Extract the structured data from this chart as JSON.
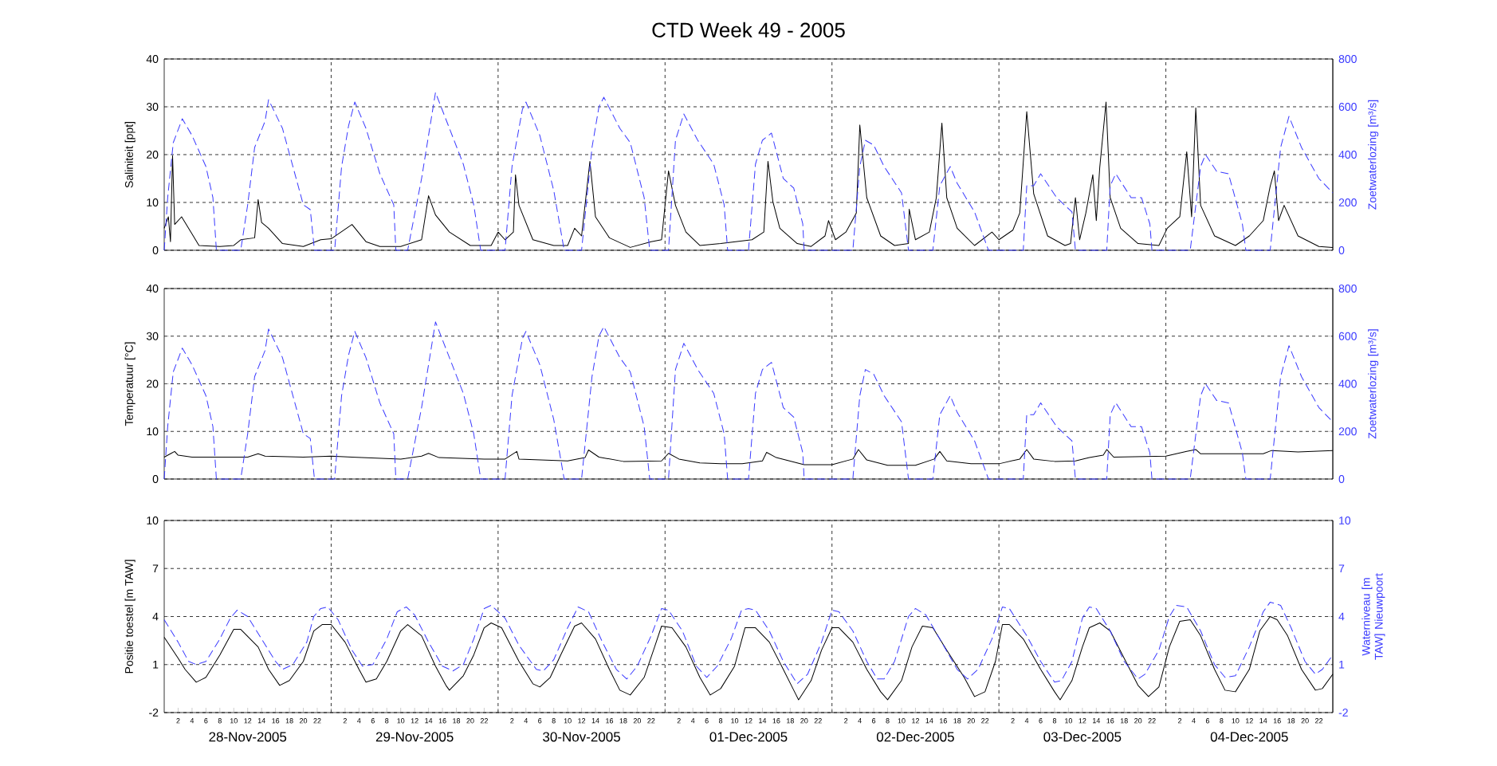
{
  "chart_data": [
    {
      "type": "line",
      "title": "CTD Week 49 - 2005",
      "ylabel": "Saliniteit [ppt]",
      "y2label": "Zoetwaterlozing [m³/s]",
      "xlim": [
        "2005-11-28T00:00",
        "2005-12-05T00:00"
      ],
      "xticks": [
        {
          "value": "2005-11-29T00:00",
          "label": null
        },
        {
          "value": "2005-11-30T00:00",
          "label": null
        },
        {
          "value": "2005-12-01T00:00",
          "label": null
        },
        {
          "value": "2005-12-02T00:00",
          "label": null
        },
        {
          "value": "2005-12-03T00:00",
          "label": null
        },
        {
          "value": "2005-12-04T00:00",
          "label": null
        }
      ],
      "ylim": [
        0,
        40
      ],
      "yticks": [
        0,
        10,
        20,
        30,
        40
      ],
      "y2lim": [
        0,
        800
      ],
      "y2ticks": [
        0,
        200,
        400,
        600,
        800
      ],
      "grid": true,
      "tick_labels": "y",
      "series": [
        {
          "color": "#000000",
          "line_style": "solid",
          "x": [
            "2005-11-28T00:00",
            "2005-11-28T00:36",
            "2005-11-28T00:54",
            "2005-11-28T01:12",
            "2005-11-28T01:30",
            "2005-11-28T02:30",
            "2005-11-28T04:00",
            "2005-11-28T05:00",
            "2005-11-28T08:00",
            "2005-11-28T10:00",
            "2005-11-28T11:00",
            "2005-11-28T13:00",
            "2005-11-28T13:30",
            "2005-11-28T14:00",
            "2005-11-28T15:00",
            "2005-11-28T17:00",
            "2005-11-28T20:00",
            "2005-11-28T22:30",
            "2005-11-29T00:00",
            "2005-11-29T03:00",
            "2005-11-29T05:00",
            "2005-11-29T07:00",
            "2005-11-29T10:00",
            "2005-11-29T13:00",
            "2005-11-29T14:00",
            "2005-11-29T15:00",
            "2005-11-29T17:00",
            "2005-11-29T20:00",
            "2005-11-29T23:00",
            "2005-11-30T00:00",
            "2005-11-30T01:00",
            "2005-11-30T02:12",
            "2005-11-30T02:30",
            "2005-11-30T03:00",
            "2005-11-30T05:00",
            "2005-11-30T08:00",
            "2005-11-30T10:00",
            "2005-11-30T11:00",
            "2005-11-30T12:00",
            "2005-11-30T13:12",
            "2005-11-30T14:00",
            "2005-11-30T16:00",
            "2005-11-30T19:00",
            "2005-11-30T22:00",
            "2005-11-30T23:30",
            "2005-12-01T00:30",
            "2005-12-01T01:30",
            "2005-12-01T03:00",
            "2005-12-01T05:00",
            "2005-12-01T08:00",
            "2005-12-01T12:30",
            "2005-12-01T14:12",
            "2005-12-01T14:48",
            "2005-12-01T15:30",
            "2005-12-01T16:30",
            "2005-12-01T19:00",
            "2005-12-01T21:00",
            "2005-12-01T23:00",
            "2005-12-01T23:30",
            "2005-12-02T00:30",
            "2005-12-02T02:00",
            "2005-12-02T03:30",
            "2005-12-02T04:00",
            "2005-12-02T05:00",
            "2005-12-02T07:00",
            "2005-12-02T09:00",
            "2005-12-02T11:00",
            "2005-12-02T11:06",
            "2005-12-02T12:00",
            "2005-12-02T14:00",
            "2005-12-02T15:00",
            "2005-12-02T15:48",
            "2005-12-02T16:30",
            "2005-12-02T18:00",
            "2005-12-02T20:30",
            "2005-12-02T23:00",
            "2005-12-03T00:00",
            "2005-12-03T02:00",
            "2005-12-03T03:00",
            "2005-12-03T04:00",
            "2005-12-03T05:00",
            "2005-12-03T07:00",
            "2005-12-03T09:30",
            "2005-12-03T10:18",
            "2005-12-03T11:00",
            "2005-12-03T11:36",
            "2005-12-03T12:30",
            "2005-12-03T13:30",
            "2005-12-03T14:00",
            "2005-12-03T14:30",
            "2005-12-03T15:24",
            "2005-12-03T16:00",
            "2005-12-03T17:30",
            "2005-12-03T20:00",
            "2005-12-03T23:00",
            "2005-12-04T00:12",
            "2005-12-04T02:00",
            "2005-12-04T03:00",
            "2005-12-04T03:42",
            "2005-12-04T04:18",
            "2005-12-04T05:00",
            "2005-12-04T07:00",
            "2005-12-04T10:00",
            "2005-12-04T12:00",
            "2005-12-04T14:00",
            "2005-12-04T15:00",
            "2005-12-04T15:36",
            "2005-12-04T16:12",
            "2005-12-04T17:00",
            "2005-12-04T19:00",
            "2005-12-04T22:00",
            "2005-12-05T00:00"
          ],
          "values": [
            4.6,
            7,
            1.8,
            19.8,
            5.4,
            7,
            3.4,
            1,
            0.8,
            1,
            2.2,
            2.6,
            10.6,
            5.8,
            4.6,
            1.4,
            0.8,
            2.2,
            2.4,
            5.4,
            1.8,
            0.8,
            0.8,
            2.2,
            11.4,
            7.4,
            3.8,
            1,
            1,
            3.8,
            2.2,
            3.8,
            15.8,
            9.4,
            2.2,
            1,
            1,
            4.6,
            3,
            18.6,
            7,
            2.6,
            0.6,
            1.8,
            2.2,
            16.6,
            9.4,
            3.8,
            1,
            1.4,
            2.2,
            3.8,
            18.6,
            10.2,
            4.6,
            1.4,
            0.8,
            3,
            6.2,
            2.2,
            3.8,
            7.8,
            26.2,
            11,
            3,
            1,
            1.4,
            8.6,
            2.2,
            3.8,
            11,
            26.6,
            11,
            4.6,
            1,
            3.8,
            2.2,
            4.2,
            7.8,
            29,
            11.8,
            3,
            1,
            1.4,
            11,
            2.2,
            7.8,
            15.8,
            6.2,
            17.4,
            31,
            11,
            4.6,
            1.4,
            1,
            4.6,
            7,
            20.6,
            7,
            29.8,
            9.4,
            3,
            1,
            3,
            6.2,
            13.4,
            16.6,
            6.2,
            9.4,
            3,
            0.8,
            0.6
          ]
        },
        {
          "color": "#3a3aff",
          "line_style": "dashed",
          "axis": "y2",
          "x": [
            "2005-11-28T00:00",
            "2005-11-28T00:30",
            "2005-11-28T01:18",
            "2005-11-28T02:36",
            "2005-11-28T04:00",
            "2005-11-28T06:00",
            "2005-11-28T07:00",
            "2005-11-28T07:30",
            "2005-11-28T11:00",
            "2005-11-28T12:00",
            "2005-11-28T13:00",
            "2005-11-28T14:30",
            "2005-11-28T15:00",
            "2005-11-28T17:00",
            "2005-11-28T18:30",
            "2005-11-28T20:00",
            "2005-11-28T21:00",
            "2005-11-28T21:36",
            "2005-11-29T00:30",
            "2005-11-29T01:30",
            "2005-11-29T02:30",
            "2005-11-29T03:24",
            "2005-11-29T05:00",
            "2005-11-29T07:00",
            "2005-11-29T09:00",
            "2005-11-29T09:18",
            "2005-11-29T11:00",
            "2005-11-29T13:00",
            "2005-11-29T14:00",
            "2005-11-29T15:00",
            "2005-11-29T17:00",
            "2005-11-29T19:00",
            "2005-11-29T20:30",
            "2005-11-29T21:30",
            "2005-11-30T01:00",
            "2005-11-30T02:00",
            "2005-11-30T03:30",
            "2005-11-30T04:00",
            "2005-11-30T06:00",
            "2005-11-30T08:00",
            "2005-11-30T09:30",
            "2005-11-30T12:00",
            "2005-11-30T13:30",
            "2005-11-30T14:30",
            "2005-11-30T15:12",
            "2005-11-30T17:30",
            "2005-11-30T19:00",
            "2005-11-30T21:00",
            "2005-11-30T21:48",
            "2005-12-01T00:30",
            "2005-12-01T01:30",
            "2005-12-01T02:42",
            "2005-12-01T04:42",
            "2005-12-01T07:00",
            "2005-12-01T08:30",
            "2005-12-01T09:00",
            "2005-12-01T12:00",
            "2005-12-01T13:00",
            "2005-12-01T14:00",
            "2005-12-01T15:18",
            "2005-12-01T17:00",
            "2005-12-01T18:30",
            "2005-12-01T19:48",
            "2005-12-01T20:00",
            "2005-12-02T03:00",
            "2005-12-02T04:00",
            "2005-12-02T04:48",
            "2005-12-02T06:00",
            "2005-12-02T07:30",
            "2005-12-02T10:00",
            "2005-12-02T11:00",
            "2005-12-02T14:30",
            "2005-12-02T15:30",
            "2005-12-02T17:00",
            "2005-12-02T18:00",
            "2005-12-02T20:30",
            "2005-12-02T22:30",
            "2005-12-03T03:30",
            "2005-12-03T04:00",
            "2005-12-03T05:00",
            "2005-12-03T06:00",
            "2005-12-03T08:18",
            "2005-12-03T10:30",
            "2005-12-03T11:00",
            "2005-12-03T15:30",
            "2005-12-03T16:00",
            "2005-12-03T16:48",
            "2005-12-03T19:00",
            "2005-12-03T20:30",
            "2005-12-03T21:42",
            "2005-12-03T22:00",
            "2005-12-04T03:30",
            "2005-12-04T05:00",
            "2005-12-04T05:42",
            "2005-12-04T07:18",
            "2005-12-04T09:00",
            "2005-12-04T11:00",
            "2005-12-04T11:30",
            "2005-12-04T15:00",
            "2005-12-04T16:30",
            "2005-12-04T17:42",
            "2005-12-04T19:30",
            "2005-12-04T22:00",
            "2005-12-05T00:00"
          ],
          "values": [
            0,
            220,
            450,
            550,
            480,
            350,
            220,
            0,
            0,
            190,
            430,
            540,
            630,
            510,
            350,
            190,
            170,
            0,
            0,
            350,
            520,
            620,
            510,
            320,
            190,
            0,
            0,
            300,
            480,
            660,
            510,
            360,
            190,
            0,
            0,
            350,
            590,
            620,
            480,
            250,
            0,
            0,
            430,
            600,
            640,
            510,
            450,
            220,
            0,
            0,
            460,
            570,
            460,
            360,
            190,
            0,
            0,
            360,
            460,
            490,
            300,
            260,
            110,
            0,
            0,
            350,
            460,
            440,
            350,
            240,
            0,
            0,
            270,
            350,
            280,
            160,
            0,
            0,
            270,
            270,
            320,
            220,
            160,
            0,
            0,
            270,
            320,
            220,
            220,
            110,
            0,
            0,
            350,
            400,
            330,
            320,
            110,
            0,
            0,
            430,
            560,
            430,
            300,
            240
          ]
        }
      ]
    },
    {
      "type": "line",
      "ylabel": "Temperatuur [°C]",
      "y2label": "Zoetwaterlozing [m³/s]",
      "xlim": [
        "2005-11-28T00:00",
        "2005-12-05T00:00"
      ],
      "xticks": [
        {
          "value": "2005-11-29T00:00",
          "label": null
        },
        {
          "value": "2005-11-30T00:00",
          "label": null
        },
        {
          "value": "2005-12-01T00:00",
          "label": null
        },
        {
          "value": "2005-12-02T00:00",
          "label": null
        },
        {
          "value": "2005-12-03T00:00",
          "label": null
        },
        {
          "value": "2005-12-04T00:00",
          "label": null
        }
      ],
      "ylim": [
        0,
        40
      ],
      "yticks": [
        0,
        10,
        20,
        30,
        40
      ],
      "y2lim": [
        0,
        800
      ],
      "y2ticks": [
        0,
        200,
        400,
        600,
        800
      ],
      "grid": true,
      "tick_labels": "y",
      "series": [
        {
          "color": "#000000",
          "line_style": "solid",
          "x": [
            "2005-11-28T00:00",
            "2005-11-28T01:00",
            "2005-11-28T01:30",
            "2005-11-28T02:00",
            "2005-11-28T04:00",
            "2005-11-28T12:00",
            "2005-11-28T13:30",
            "2005-11-28T14:30",
            "2005-11-28T20:00",
            "2005-11-29T00:00",
            "2005-11-29T03:00",
            "2005-11-29T10:00",
            "2005-11-29T13:00",
            "2005-11-29T14:00",
            "2005-11-29T15:30",
            "2005-11-29T22:00",
            "2005-11-30T01:00",
            "2005-11-30T02:42",
            "2005-11-30T03:00",
            "2005-11-30T10:00",
            "2005-11-30T12:30",
            "2005-11-30T13:00",
            "2005-11-30T14:30",
            "2005-11-30T18:00",
            "2005-11-30T23:30",
            "2005-12-01T00:30",
            "2005-12-01T02:00",
            "2005-12-01T05:00",
            "2005-12-01T08:00",
            "2005-12-01T11:06",
            "2005-12-01T14:00",
            "2005-12-01T14:36",
            "2005-12-01T16:00",
            "2005-12-01T20:00",
            "2005-12-02T00:00",
            "2005-12-02T03:00",
            "2005-12-02T03:48",
            "2005-12-02T05:00",
            "2005-12-02T08:00",
            "2005-12-02T12:00",
            "2005-12-02T14:42",
            "2005-12-02T15:30",
            "2005-12-02T16:30",
            "2005-12-02T20:00",
            "2005-12-03T00:00",
            "2005-12-03T03:00",
            "2005-12-03T04:00",
            "2005-12-03T05:00",
            "2005-12-03T08:00",
            "2005-12-03T11:00",
            "2005-12-03T13:00",
            "2005-12-03T15:00",
            "2005-12-03T15:30",
            "2005-12-03T16:30",
            "2005-12-04T00:00",
            "2005-12-04T03:00",
            "2005-12-04T04:18",
            "2005-12-04T05:00",
            "2005-12-04T14:00",
            "2005-12-04T15:12",
            "2005-12-04T19:00",
            "2005-12-05T00:00"
          ],
          "values": [
            4.6,
            5.4,
            5.8,
            5,
            4.6,
            4.6,
            5.3,
            4.8,
            4.6,
            4.8,
            4.6,
            4.2,
            4.8,
            5.4,
            4.5,
            4.2,
            4.2,
            5.8,
            4.2,
            3.8,
            4.5,
            6.1,
            4.6,
            3.7,
            3.8,
            5.4,
            4.2,
            3.4,
            3.2,
            3.2,
            3.8,
            5.6,
            4.5,
            3,
            3,
            4.2,
            6.2,
            4,
            2.9,
            2.9,
            4.2,
            5.8,
            3.8,
            3.2,
            3.2,
            4.2,
            6.2,
            4.2,
            3.7,
            3.8,
            4.5,
            5,
            6.2,
            4.6,
            4.8,
            5.8,
            6.2,
            5.3,
            5.3,
            6,
            5.7,
            6
          ]
        },
        {
          "color": "#3a3aff",
          "line_style": "dashed",
          "axis": "y2",
          "x": [
            "2005-11-28T00:00",
            "2005-11-28T00:30",
            "2005-11-28T01:18",
            "2005-11-28T02:36",
            "2005-11-28T04:00",
            "2005-11-28T06:00",
            "2005-11-28T07:00",
            "2005-11-28T07:30",
            "2005-11-28T11:00",
            "2005-11-28T12:00",
            "2005-11-28T13:00",
            "2005-11-28T14:30",
            "2005-11-28T15:00",
            "2005-11-28T17:00",
            "2005-11-28T18:30",
            "2005-11-28T20:00",
            "2005-11-28T21:00",
            "2005-11-28T21:36",
            "2005-11-29T00:30",
            "2005-11-29T01:30",
            "2005-11-29T02:30",
            "2005-11-29T03:24",
            "2005-11-29T05:00",
            "2005-11-29T07:00",
            "2005-11-29T09:00",
            "2005-11-29T09:18",
            "2005-11-29T11:00",
            "2005-11-29T13:00",
            "2005-11-29T14:00",
            "2005-11-29T15:00",
            "2005-11-29T17:00",
            "2005-11-29T19:00",
            "2005-11-29T20:30",
            "2005-11-29T21:30",
            "2005-11-30T01:00",
            "2005-11-30T02:00",
            "2005-11-30T03:30",
            "2005-11-30T04:00",
            "2005-11-30T06:00",
            "2005-11-30T08:00",
            "2005-11-30T09:30",
            "2005-11-30T12:00",
            "2005-11-30T13:30",
            "2005-11-30T14:30",
            "2005-11-30T15:12",
            "2005-11-30T17:30",
            "2005-11-30T19:00",
            "2005-11-30T21:00",
            "2005-11-30T21:48",
            "2005-12-01T00:30",
            "2005-12-01T01:30",
            "2005-12-01T02:42",
            "2005-12-01T04:42",
            "2005-12-01T07:00",
            "2005-12-01T08:30",
            "2005-12-01T09:00",
            "2005-12-01T12:00",
            "2005-12-01T13:00",
            "2005-12-01T14:00",
            "2005-12-01T15:18",
            "2005-12-01T17:00",
            "2005-12-01T18:30",
            "2005-12-01T19:48",
            "2005-12-01T20:00",
            "2005-12-02T03:00",
            "2005-12-02T04:00",
            "2005-12-02T04:48",
            "2005-12-02T06:00",
            "2005-12-02T07:30",
            "2005-12-02T10:00",
            "2005-12-02T11:00",
            "2005-12-02T14:30",
            "2005-12-02T15:30",
            "2005-12-02T17:00",
            "2005-12-02T18:00",
            "2005-12-02T20:30",
            "2005-12-02T22:30",
            "2005-12-03T03:30",
            "2005-12-03T04:00",
            "2005-12-03T05:00",
            "2005-12-03T06:00",
            "2005-12-03T08:18",
            "2005-12-03T10:30",
            "2005-12-03T11:00",
            "2005-12-03T15:30",
            "2005-12-03T16:00",
            "2005-12-03T16:48",
            "2005-12-03T19:00",
            "2005-12-03T20:30",
            "2005-12-03T21:42",
            "2005-12-03T22:00",
            "2005-12-04T03:30",
            "2005-12-04T05:00",
            "2005-12-04T05:42",
            "2005-12-04T07:18",
            "2005-12-04T09:00",
            "2005-12-04T11:00",
            "2005-12-04T11:30",
            "2005-12-04T15:00",
            "2005-12-04T16:30",
            "2005-12-04T17:42",
            "2005-12-04T19:30",
            "2005-12-04T22:00",
            "2005-12-05T00:00"
          ],
          "values": [
            0,
            220,
            450,
            550,
            480,
            350,
            220,
            0,
            0,
            190,
            430,
            540,
            630,
            510,
            350,
            190,
            170,
            0,
            0,
            350,
            520,
            620,
            510,
            320,
            190,
            0,
            0,
            300,
            480,
            660,
            510,
            360,
            190,
            0,
            0,
            350,
            590,
            620,
            480,
            250,
            0,
            0,
            430,
            600,
            640,
            510,
            450,
            220,
            0,
            0,
            460,
            570,
            460,
            360,
            190,
            0,
            0,
            360,
            460,
            490,
            300,
            260,
            110,
            0,
            0,
            350,
            460,
            440,
            350,
            240,
            0,
            0,
            270,
            350,
            280,
            160,
            0,
            0,
            270,
            270,
            320,
            220,
            160,
            0,
            0,
            270,
            320,
            220,
            220,
            110,
            0,
            0,
            350,
            400,
            330,
            320,
            110,
            0,
            0,
            430,
            560,
            430,
            300,
            240
          ]
        }
      ]
    },
    {
      "type": "line",
      "ylabel": "Positie toestel [m TAW]",
      "y2label": "Waterniveau [m TAW] Nieuwpoort",
      "annotations": [
        "28-Nov-2005",
        "29-Nov-2005",
        "30-Nov-2005",
        "01-Dec-2005",
        "02-Dec-2005",
        "03-Dec-2005",
        "04-Dec-2005"
      ],
      "xlim": [
        "2005-11-28T00:00",
        "2005-12-05T00:00"
      ],
      "xticks": [
        {
          "value": "2005-11-29T00:00",
          "label": null
        },
        {
          "value": "2005-11-30T00:00",
          "label": null
        },
        {
          "value": "2005-12-01T00:00",
          "label": null
        },
        {
          "value": "2005-12-02T00:00",
          "label": null
        },
        {
          "value": "2005-12-03T00:00",
          "label": null
        },
        {
          "value": "2005-12-04T00:00",
          "label": null
        },
        {
          "value": "2005-11-28T02:00",
          "label": "2"
        },
        {
          "value": "2005-11-28T04:00",
          "label": "4"
        },
        {
          "value": "2005-11-28T06:00",
          "label": "6"
        },
        {
          "value": "2005-11-28T08:00",
          "label": "8"
        },
        {
          "value": "2005-11-28T10:00",
          "label": "10"
        },
        {
          "value": "2005-11-28T12:00",
          "label": "12"
        },
        {
          "value": "2005-11-28T14:00",
          "label": "14"
        },
        {
          "value": "2005-11-28T16:00",
          "label": "16"
        },
        {
          "value": "2005-11-28T18:00",
          "label": "18"
        },
        {
          "value": "2005-11-28T20:00",
          "label": "20"
        },
        {
          "value": "2005-11-28T22:00",
          "label": "22"
        },
        {
          "value": "2005-11-29T02:00",
          "label": "2"
        },
        {
          "value": "2005-11-29T04:00",
          "label": "4"
        },
        {
          "value": "2005-11-29T06:00",
          "label": "6"
        },
        {
          "value": "2005-11-29T08:00",
          "label": "8"
        },
        {
          "value": "2005-11-29T10:00",
          "label": "10"
        },
        {
          "value": "2005-11-29T12:00",
          "label": "12"
        },
        {
          "value": "2005-11-29T14:00",
          "label": "14"
        },
        {
          "value": "2005-11-29T16:00",
          "label": "16"
        },
        {
          "value": "2005-11-29T18:00",
          "label": "18"
        },
        {
          "value": "2005-11-29T20:00",
          "label": "20"
        },
        {
          "value": "2005-11-29T22:00",
          "label": "22"
        },
        {
          "value": "2005-11-30T02:00",
          "label": "2"
        },
        {
          "value": "2005-11-30T04:00",
          "label": "4"
        },
        {
          "value": "2005-11-30T06:00",
          "label": "6"
        },
        {
          "value": "2005-11-30T08:00",
          "label": "8"
        },
        {
          "value": "2005-11-30T10:00",
          "label": "10"
        },
        {
          "value": "2005-11-30T12:00",
          "label": "12"
        },
        {
          "value": "2005-11-30T14:00",
          "label": "14"
        },
        {
          "value": "2005-11-30T16:00",
          "label": "16"
        },
        {
          "value": "2005-11-30T18:00",
          "label": "18"
        },
        {
          "value": "2005-11-30T20:00",
          "label": "20"
        },
        {
          "value": "2005-11-30T22:00",
          "label": "22"
        },
        {
          "value": "2005-12-01T02:00",
          "label": "2"
        },
        {
          "value": "2005-12-01T04:00",
          "label": "4"
        },
        {
          "value": "2005-12-01T06:00",
          "label": "6"
        },
        {
          "value": "2005-12-01T08:00",
          "label": "8"
        },
        {
          "value": "2005-12-01T10:00",
          "label": "10"
        },
        {
          "value": "2005-12-01T12:00",
          "label": "12"
        },
        {
          "value": "2005-12-01T14:00",
          "label": "14"
        },
        {
          "value": "2005-12-01T16:00",
          "label": "16"
        },
        {
          "value": "2005-12-01T18:00",
          "label": "18"
        },
        {
          "value": "2005-12-01T20:00",
          "label": "20"
        },
        {
          "value": "2005-12-01T22:00",
          "label": "22"
        },
        {
          "value": "2005-12-02T02:00",
          "label": "2"
        },
        {
          "value": "2005-12-02T04:00",
          "label": "4"
        },
        {
          "value": "2005-12-02T06:00",
          "label": "6"
        },
        {
          "value": "2005-12-02T08:00",
          "label": "8"
        },
        {
          "value": "2005-12-02T10:00",
          "label": "10"
        },
        {
          "value": "2005-12-02T12:00",
          "label": "12"
        },
        {
          "value": "2005-12-02T14:00",
          "label": "14"
        },
        {
          "value": "2005-12-02T16:00",
          "label": "16"
        },
        {
          "value": "2005-12-02T18:00",
          "label": "18"
        },
        {
          "value": "2005-12-02T20:00",
          "label": "20"
        },
        {
          "value": "2005-12-02T22:00",
          "label": "22"
        },
        {
          "value": "2005-12-03T02:00",
          "label": "2"
        },
        {
          "value": "2005-12-03T04:00",
          "label": "4"
        },
        {
          "value": "2005-12-03T06:00",
          "label": "6"
        },
        {
          "value": "2005-12-03T08:00",
          "label": "8"
        },
        {
          "value": "2005-12-03T10:00",
          "label": "10"
        },
        {
          "value": "2005-12-03T12:00",
          "label": "12"
        },
        {
          "value": "2005-12-03T14:00",
          "label": "14"
        },
        {
          "value": "2005-12-03T16:00",
          "label": "16"
        },
        {
          "value": "2005-12-03T18:00",
          "label": "18"
        },
        {
          "value": "2005-12-03T20:00",
          "label": "20"
        },
        {
          "value": "2005-12-03T22:00",
          "label": "22"
        },
        {
          "value": "2005-12-04T02:00",
          "label": "2"
        },
        {
          "value": "2005-12-04T04:00",
          "label": "4"
        },
        {
          "value": "2005-12-04T06:00",
          "label": "6"
        },
        {
          "value": "2005-12-04T08:00",
          "label": "8"
        },
        {
          "value": "2005-12-04T10:00",
          "label": "10"
        },
        {
          "value": "2005-12-04T12:00",
          "label": "12"
        },
        {
          "value": "2005-12-04T14:00",
          "label": "14"
        },
        {
          "value": "2005-12-04T16:00",
          "label": "16"
        },
        {
          "value": "2005-12-04T18:00",
          "label": "18"
        },
        {
          "value": "2005-12-04T20:00",
          "label": "20"
        },
        {
          "value": "2005-12-04T22:00",
          "label": "22"
        }
      ],
      "ylim": [
        -2,
        10
      ],
      "yticks": [
        -2,
        1,
        4,
        7,
        10
      ],
      "y2lim": [
        -2,
        10
      ],
      "y2ticks": [
        -2,
        1,
        4,
        7,
        10
      ],
      "grid": true,
      "series": [
        {
          "color": "#000000",
          "line_style": "solid",
          "x": [
            "2005-11-28T00:00",
            "2005-11-28T02:00",
            "2005-11-28T03:00",
            "2005-11-28T04:36",
            "2005-11-28T06:00",
            "2005-11-28T08:00",
            "2005-11-28T10:00",
            "2005-11-28T11:00",
            "2005-11-28T13:30",
            "2005-11-28T15:00",
            "2005-11-28T16:36",
            "2005-11-28T18:00",
            "2005-11-28T20:00",
            "2005-11-28T21:30",
            "2005-11-28T22:42",
            "2005-11-29T00:00",
            "2005-11-29T02:00",
            "2005-11-29T04:00",
            "2005-11-29T05:00",
            "2005-11-29T06:30",
            "2005-11-29T08:00",
            "2005-11-29T10:00",
            "2005-11-29T11:00",
            "2005-11-29T13:00",
            "2005-11-29T15:00",
            "2005-11-29T16:30",
            "2005-11-29T17:00",
            "2005-11-29T19:00",
            "2005-11-29T20:30",
            "2005-11-29T22:00",
            "2005-11-29T23:00",
            "2005-11-30T00:30",
            "2005-11-30T03:00",
            "2005-11-30T05:00",
            "2005-11-30T06:00",
            "2005-11-30T07:30",
            "2005-11-30T09:00",
            "2005-11-30T11:00",
            "2005-11-30T12:00",
            "2005-11-30T14:00",
            "2005-11-30T16:00",
            "2005-11-30T17:30",
            "2005-11-30T19:00",
            "2005-11-30T21:00",
            "2005-11-30T22:30",
            "2005-11-30T23:30",
            "2005-12-01T01:00",
            "2005-12-01T03:00",
            "2005-12-01T05:00",
            "2005-12-01T06:30",
            "2005-12-01T08:00",
            "2005-12-01T10:00",
            "2005-12-01T11:30",
            "2005-12-01T13:00",
            "2005-12-01T15:00",
            "2005-12-01T17:00",
            "2005-12-01T18:30",
            "2005-12-01T19:12",
            "2005-12-01T21:00",
            "2005-12-01T22:30",
            "2005-12-02T00:00",
            "2005-12-02T01:00",
            "2005-12-02T03:00",
            "2005-12-02T05:00",
            "2005-12-02T07:00",
            "2005-12-02T08:00",
            "2005-12-02T10:00",
            "2005-12-02T11:30",
            "2005-12-02T13:00",
            "2005-12-02T14:30",
            "2005-12-02T16:30",
            "2005-12-02T19:00",
            "2005-12-02T20:30",
            "2005-12-02T22:00",
            "2005-12-02T23:30",
            "2005-12-03T00:30",
            "2005-12-03T01:30",
            "2005-12-03T03:30",
            "2005-12-03T06:00",
            "2005-12-03T08:00",
            "2005-12-03T08:48",
            "2005-12-03T10:30",
            "2005-12-03T12:00",
            "2005-12-03T13:00",
            "2005-12-03T14:30",
            "2005-12-03T16:00",
            "2005-12-03T18:00",
            "2005-12-03T20:00",
            "2005-12-03T21:30",
            "2005-12-03T23:00",
            "2005-12-04T00:30",
            "2005-12-04T02:00",
            "2005-12-04T03:30",
            "2005-12-04T05:00",
            "2005-12-04T07:00",
            "2005-12-04T08:30",
            "2005-12-04T10:00",
            "2005-12-04T12:00",
            "2005-12-04T13:30",
            "2005-12-04T15:00",
            "2005-12-04T16:00",
            "2005-12-04T17:30",
            "2005-12-04T19:30",
            "2005-12-04T21:30",
            "2005-12-04T22:30",
            "2005-12-05T00:00"
          ],
          "values": [
            2.7,
            1.4,
            0.7,
            -0.1,
            0.2,
            1.6,
            3.2,
            3.2,
            2.1,
            0.7,
            -0.3,
            0,
            1.2,
            3.1,
            3.5,
            3.5,
            2.4,
            0.7,
            -0.1,
            0.1,
            1.2,
            3.1,
            3.5,
            2.8,
            0.9,
            -0.3,
            -0.6,
            0.3,
            1.6,
            3.3,
            3.6,
            3.3,
            1.2,
            -0.2,
            -0.4,
            0.2,
            1.6,
            3.4,
            3.6,
            2.6,
            0.7,
            -0.6,
            -0.9,
            0.2,
            2.1,
            3.4,
            3.3,
            2.1,
            0.2,
            -0.9,
            -0.5,
            0.9,
            3.3,
            3.3,
            2.4,
            0.7,
            -0.6,
            -1.2,
            0,
            1.9,
            3.3,
            3.3,
            2.4,
            0.7,
            -0.7,
            -1.2,
            0,
            2.1,
            3.4,
            3.3,
            1.9,
            0.2,
            -1,
            -0.7,
            1.2,
            3.5,
            3.5,
            2.6,
            0.7,
            -0.7,
            -1.2,
            0,
            2.1,
            3.3,
            3.6,
            3.1,
            1.4,
            -0.3,
            -1,
            -0.4,
            2.1,
            3.7,
            3.8,
            2.8,
            0.7,
            -0.6,
            -0.7,
            0.7,
            3.1,
            4,
            3.8,
            2.8,
            0.7,
            -0.6,
            -0.5,
            0.4
          ]
        },
        {
          "color": "#3a3aff",
          "line_style": "dashed",
          "axis": "y2",
          "x": [
            "2005-11-28T00:00",
            "2005-11-28T02:00",
            "2005-11-28T03:30",
            "2005-11-28T04:36",
            "2005-11-28T06:00",
            "2005-11-28T08:00",
            "2005-11-28T09:30",
            "2005-11-28T10:30",
            "2005-11-28T12:00",
            "2005-11-28T14:00",
            "2005-11-28T16:00",
            "2005-11-28T17:00",
            "2005-11-28T18:30",
            "2005-11-28T20:30",
            "2005-11-28T21:30",
            "2005-11-28T22:30",
            "2005-11-28T23:30",
            "2005-11-29T01:00",
            "2005-11-29T03:00",
            "2005-11-29T04:30",
            "2005-11-29T06:00",
            "2005-11-29T08:00",
            "2005-11-29T09:30",
            "2005-11-29T10:48",
            "2005-11-29T12:00",
            "2005-11-29T14:00",
            "2005-11-29T16:00",
            "2005-11-29T17:30",
            "2005-11-29T19:00",
            "2005-11-29T20:30",
            "2005-11-29T22:00",
            "2005-11-29T23:00",
            "2005-11-30T01:00",
            "2005-11-30T03:00",
            "2005-11-30T05:30",
            "2005-11-30T06:30",
            "2005-11-30T08:00",
            "2005-11-30T10:00",
            "2005-11-30T11:30",
            "2005-11-30T13:00",
            "2005-11-30T15:00",
            "2005-11-30T17:00",
            "2005-11-30T18:30",
            "2005-11-30T20:00",
            "2005-11-30T22:00",
            "2005-11-30T23:30",
            "2005-12-01T00:30",
            "2005-12-01T02:30",
            "2005-12-01T04:30",
            "2005-12-01T06:00",
            "2005-12-01T07:30",
            "2005-12-01T09:30",
            "2005-12-01T11:00",
            "2005-12-01T12:00",
            "2005-12-01T13:00",
            "2005-12-01T15:00",
            "2005-12-01T17:00",
            "2005-12-01T19:00",
            "2005-12-01T20:30",
            "2005-12-01T22:30",
            "2005-12-02T00:00",
            "2005-12-02T01:00",
            "2005-12-02T03:00",
            "2005-12-02T05:00",
            "2005-12-02T06:30",
            "2005-12-02T07:30",
            "2005-12-02T09:00",
            "2005-12-02T11:00",
            "2005-12-02T12:00",
            "2005-12-02T13:30",
            "2005-12-02T15:30",
            "2005-12-02T18:00",
            "2005-12-02T19:30",
            "2005-12-02T21:00",
            "2005-12-02T23:00",
            "2005-12-03T00:30",
            "2005-12-03T01:30",
            "2005-12-03T04:00",
            "2005-12-03T06:00",
            "2005-12-03T08:00",
            "2005-12-03T09:00",
            "2005-12-03T10:30",
            "2005-12-03T12:00",
            "2005-12-03T13:00",
            "2005-12-03T14:00",
            "2005-12-03T16:00",
            "2005-12-03T18:00",
            "2005-12-03T20:00",
            "2005-12-03T21:00",
            "2005-12-03T23:00",
            "2005-12-04T00:30",
            "2005-12-04T01:30",
            "2005-12-04T03:00",
            "2005-12-04T05:00",
            "2005-12-04T07:00",
            "2005-12-04T08:30",
            "2005-12-04T10:00",
            "2005-12-04T12:00",
            "2005-12-04T14:00",
            "2005-12-04T15:00",
            "2005-12-04T16:30",
            "2005-12-04T18:00",
            "2005-12-04T20:00",
            "2005-12-04T21:30",
            "2005-12-04T22:30",
            "2005-12-05T00:00"
          ],
          "values": [
            3.8,
            2.4,
            1.2,
            1,
            1.2,
            2.6,
            3.9,
            4.4,
            4,
            2.6,
            1.2,
            0.7,
            1,
            2.4,
            4,
            4.5,
            4.6,
            3.8,
            1.9,
            0.9,
            1,
            2.6,
            4.3,
            4.6,
            4.1,
            2.4,
            0.9,
            0.6,
            1,
            2.6,
            4.5,
            4.7,
            3.9,
            2.2,
            0.7,
            0.6,
            1.3,
            3.3,
            4.6,
            4.3,
            2.4,
            0.7,
            0.1,
            0.9,
            2.8,
            4.5,
            4.4,
            3.1,
            0.9,
            0.2,
            0.9,
            2.6,
            4.4,
            4.5,
            4.4,
            3.1,
            1.2,
            -0.2,
            0.4,
            2.4,
            4.4,
            4.3,
            3.1,
            1.2,
            0.1,
            0.1,
            1.2,
            4,
            4.5,
            4.1,
            2.6,
            0.7,
            0.1,
            0.7,
            2.6,
            4.6,
            4.5,
            2.8,
            1.2,
            -0.1,
            0,
            1.2,
            3.9,
            4.6,
            4.5,
            3.1,
            1.2,
            0.1,
            0.4,
            1.9,
            4,
            4.7,
            4.6,
            3.1,
            1,
            0.2,
            0.3,
            2.1,
            4.3,
            4.9,
            4.7,
            3.3,
            1.2,
            0.4,
            0.7,
            1.6
          ]
        }
      ]
    }
  ]
}
